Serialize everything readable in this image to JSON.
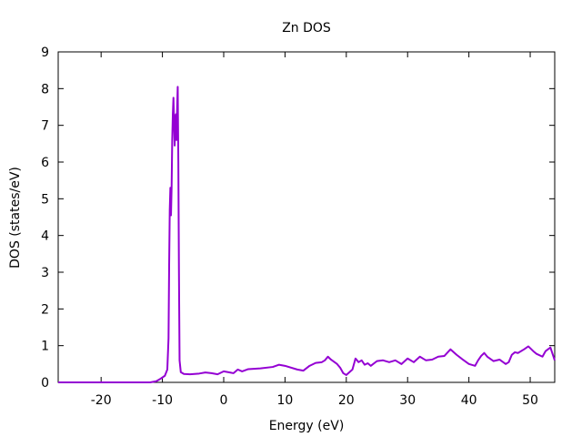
{
  "chart_data": {
    "type": "line",
    "title": "Zn DOS",
    "xlabel": "Energy (eV)",
    "ylabel": "DOS (states/eV)",
    "xlim": [
      -27,
      54
    ],
    "ylim": [
      0,
      9
    ],
    "xticks": [
      -20,
      -10,
      0,
      10,
      20,
      30,
      40,
      50
    ],
    "yticks": [
      0,
      1,
      2,
      3,
      4,
      5,
      6,
      7,
      8,
      9
    ],
    "grid": false,
    "legend": "none",
    "series": [
      {
        "color": "#9400d3",
        "points": [
          [
            -27,
            0.0
          ],
          [
            -12.0,
            0.0
          ],
          [
            -11.0,
            0.03
          ],
          [
            -10.3,
            0.1
          ],
          [
            -9.6,
            0.18
          ],
          [
            -9.2,
            0.35
          ],
          [
            -9.0,
            1.2
          ],
          [
            -8.9,
            3.2
          ],
          [
            -8.8,
            4.7
          ],
          [
            -8.7,
            5.3
          ],
          [
            -8.6,
            4.55
          ],
          [
            -8.5,
            5.3
          ],
          [
            -8.4,
            6.6
          ],
          [
            -8.3,
            7.3
          ],
          [
            -8.2,
            7.75
          ],
          [
            -8.1,
            7.1
          ],
          [
            -8.0,
            6.45
          ],
          [
            -7.9,
            7.2
          ],
          [
            -7.8,
            7.3
          ],
          [
            -7.7,
            6.6
          ],
          [
            -7.6,
            7.5
          ],
          [
            -7.5,
            8.05
          ],
          [
            -7.4,
            6.0
          ],
          [
            -7.3,
            3.0
          ],
          [
            -7.2,
            0.6
          ],
          [
            -7.0,
            0.28
          ],
          [
            -6.5,
            0.23
          ],
          [
            -5.5,
            0.22
          ],
          [
            -4.0,
            0.24
          ],
          [
            -3.0,
            0.27
          ],
          [
            -2.0,
            0.25
          ],
          [
            -1.0,
            0.22
          ],
          [
            0.0,
            0.3
          ],
          [
            1.0,
            0.27
          ],
          [
            1.6,
            0.25
          ],
          [
            2.3,
            0.35
          ],
          [
            3.0,
            0.3
          ],
          [
            4.0,
            0.36
          ],
          [
            6.0,
            0.38
          ],
          [
            8.0,
            0.42
          ],
          [
            9.0,
            0.48
          ],
          [
            10.0,
            0.45
          ],
          [
            12.0,
            0.35
          ],
          [
            13.0,
            0.32
          ],
          [
            14.0,
            0.45
          ],
          [
            15.0,
            0.53
          ],
          [
            16.0,
            0.55
          ],
          [
            16.5,
            0.6
          ],
          [
            17.0,
            0.7
          ],
          [
            17.5,
            0.62
          ],
          [
            18.5,
            0.5
          ],
          [
            19.0,
            0.4
          ],
          [
            19.5,
            0.25
          ],
          [
            20.0,
            0.2
          ],
          [
            21.0,
            0.35
          ],
          [
            21.5,
            0.65
          ],
          [
            22.0,
            0.55
          ],
          [
            22.5,
            0.6
          ],
          [
            23.0,
            0.48
          ],
          [
            23.5,
            0.52
          ],
          [
            24.0,
            0.45
          ],
          [
            25.0,
            0.58
          ],
          [
            26.0,
            0.6
          ],
          [
            27.0,
            0.55
          ],
          [
            28.0,
            0.6
          ],
          [
            29.0,
            0.5
          ],
          [
            30.0,
            0.65
          ],
          [
            31.0,
            0.55
          ],
          [
            32.0,
            0.7
          ],
          [
            33.0,
            0.6
          ],
          [
            34.0,
            0.62
          ],
          [
            35.0,
            0.7
          ],
          [
            36.0,
            0.72
          ],
          [
            37.0,
            0.9
          ],
          [
            38.0,
            0.75
          ],
          [
            39.0,
            0.62
          ],
          [
            40.0,
            0.5
          ],
          [
            41.0,
            0.45
          ],
          [
            41.5,
            0.6
          ],
          [
            42.0,
            0.72
          ],
          [
            42.5,
            0.8
          ],
          [
            43.0,
            0.7
          ],
          [
            44.0,
            0.58
          ],
          [
            45.0,
            0.62
          ],
          [
            46.0,
            0.5
          ],
          [
            46.5,
            0.55
          ],
          [
            47.0,
            0.75
          ],
          [
            47.5,
            0.82
          ],
          [
            48.0,
            0.8
          ],
          [
            49.0,
            0.9
          ],
          [
            49.7,
            0.98
          ],
          [
            50.5,
            0.85
          ],
          [
            51.0,
            0.78
          ],
          [
            52.0,
            0.7
          ],
          [
            52.5,
            0.85
          ],
          [
            53.3,
            0.95
          ],
          [
            54.0,
            0.6
          ]
        ]
      }
    ]
  }
}
